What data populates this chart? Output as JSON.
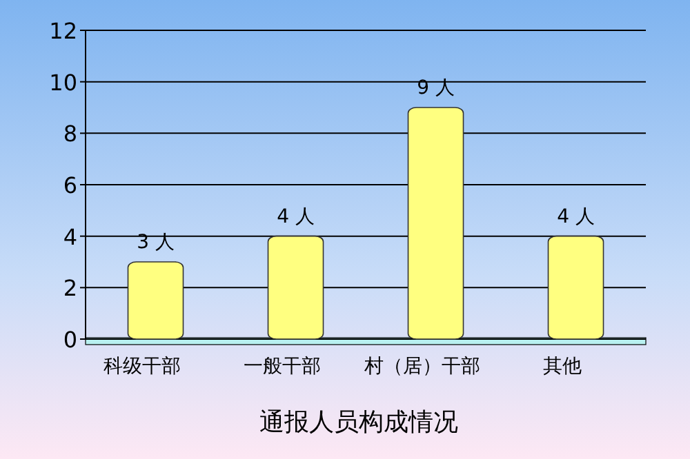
{
  "chart_data": {
    "type": "bar",
    "title": "通报人员构成情况",
    "categories": [
      "科级干部",
      "一般干部",
      "村（居）干部",
      "其他"
    ],
    "values": [
      3,
      4,
      9,
      4
    ],
    "value_labels": [
      "3 人",
      "4 人",
      "9 人",
      "4 人"
    ],
    "color": "#ffff80",
    "ylim": [
      0,
      12
    ],
    "yticks": [
      0,
      2,
      4,
      6,
      8,
      10,
      12
    ],
    "grid": "y"
  }
}
